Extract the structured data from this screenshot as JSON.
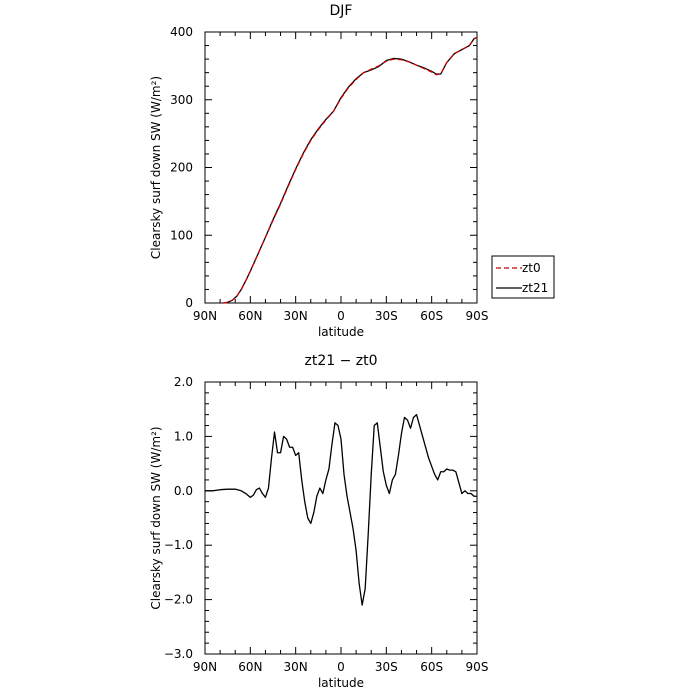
{
  "chart_data": [
    {
      "type": "line",
      "title": "DJF",
      "xlabel": "latitude",
      "ylabel": "Clearsky surf down SW (W/m²)",
      "xlim": [
        90,
        -90
      ],
      "ylim": [
        0,
        400
      ],
      "xticks": [
        90,
        60,
        30,
        0,
        -30,
        -60,
        -90
      ],
      "xtick_labels": [
        "90N",
        "60N",
        "30N",
        "0",
        "30S",
        "60S",
        "90S"
      ],
      "yticks": [
        0,
        100,
        200,
        300,
        400
      ],
      "ytick_labels": [
        "0",
        "100",
        "200",
        "300",
        "400"
      ],
      "legend_position": "outside-right",
      "series": [
        {
          "name": "zt0",
          "color": "#cc0000",
          "dash": "dashed",
          "x": [
            78,
            75,
            72,
            69,
            66,
            63,
            60,
            55,
            50,
            45,
            40,
            35,
            30,
            25,
            20,
            15,
            10,
            5,
            0,
            -5,
            -10,
            -15,
            -20,
            -25,
            -30,
            -35,
            -40,
            -45,
            -50,
            -55,
            -60,
            -63,
            -66,
            -70,
            -75,
            -80,
            -85,
            -88,
            -90
          ],
          "y": [
            0,
            1,
            4,
            10,
            20,
            33,
            47,
            72,
            97,
            122,
            146,
            172,
            197,
            220,
            240,
            256,
            270,
            283,
            302,
            318,
            330,
            340,
            345,
            350,
            357,
            360,
            359,
            356,
            351,
            346,
            341,
            337,
            338,
            355,
            368,
            374,
            380,
            390,
            392
          ]
        },
        {
          "name": "zt21",
          "color": "#000000",
          "dash": "solid",
          "x": [
            78,
            75,
            72,
            69,
            66,
            63,
            60,
            55,
            50,
            45,
            40,
            35,
            30,
            25,
            20,
            15,
            10,
            5,
            0,
            -5,
            -10,
            -15,
            -20,
            -25,
            -30,
            -35,
            -40,
            -45,
            -50,
            -55,
            -60,
            -63,
            -66,
            -70,
            -75,
            -80,
            -85,
            -88,
            -90
          ],
          "y": [
            0,
            1,
            4,
            10,
            20,
            33,
            47,
            72,
            97,
            123,
            147,
            173,
            198,
            221,
            241,
            257,
            271,
            283,
            303,
            319,
            331,
            340,
            344,
            349,
            358,
            361,
            360,
            356,
            351,
            347,
            342,
            338,
            338,
            355,
            368,
            374,
            380,
            390,
            392
          ]
        }
      ]
    },
    {
      "type": "line",
      "title": "zt21 − zt0",
      "xlabel": "latitude",
      "ylabel": "Clearsky surf down SW (W/m²)",
      "xlim": [
        90,
        -90
      ],
      "ylim": [
        -3,
        2
      ],
      "xticks": [
        90,
        60,
        30,
        0,
        -30,
        -60,
        -90
      ],
      "xtick_labels": [
        "90N",
        "60N",
        "30N",
        "0",
        "30S",
        "60S",
        "90S"
      ],
      "yticks": [
        -3,
        -2,
        -1,
        0,
        1,
        2
      ],
      "ytick_labels": [
        "−3.0",
        "−2.0",
        "−1.0",
        "0.0",
        "1.0",
        "2.0"
      ],
      "series": [
        {
          "color": "#000000",
          "x": [
            90,
            85,
            80,
            75,
            70,
            66,
            63,
            60,
            58,
            56,
            54,
            52,
            50,
            48,
            46,
            44,
            42,
            40,
            38,
            36,
            34,
            32,
            30,
            28,
            26,
            24,
            22,
            20,
            18,
            16,
            14,
            12,
            10,
            8,
            6,
            4,
            2,
            0,
            -2,
            -4,
            -6,
            -8,
            -10,
            -12,
            -14,
            -16,
            -18,
            -20,
            -22,
            -24,
            -26,
            -28,
            -30,
            -32,
            -34,
            -36,
            -38,
            -40,
            -42,
            -44,
            -46,
            -48,
            -50,
            -52,
            -54,
            -56,
            -58,
            -60,
            -62,
            -64,
            -66,
            -68,
            -70,
            -72,
            -74,
            -76,
            -78,
            -80,
            -82,
            -84,
            -86,
            -88,
            -90
          ],
          "y": [
            0.0,
            0.0,
            0.02,
            0.03,
            0.03,
            0.0,
            -0.05,
            -0.12,
            -0.08,
            0.02,
            0.05,
            -0.05,
            -0.12,
            0.05,
            0.6,
            1.08,
            0.7,
            0.7,
            1.0,
            0.95,
            0.8,
            0.8,
            0.65,
            0.7,
            0.2,
            -0.2,
            -0.5,
            -0.6,
            -0.4,
            -0.1,
            0.05,
            -0.05,
            0.2,
            0.4,
            0.85,
            1.25,
            1.2,
            0.95,
            0.3,
            -0.1,
            -0.4,
            -0.7,
            -1.1,
            -1.7,
            -2.1,
            -1.8,
            -0.8,
            0.3,
            1.2,
            1.25,
            0.8,
            0.35,
            0.1,
            -0.05,
            0.2,
            0.3,
            0.65,
            1.05,
            1.35,
            1.3,
            1.15,
            1.35,
            1.4,
            1.2,
            1.0,
            0.8,
            0.6,
            0.45,
            0.3,
            0.2,
            0.35,
            0.35,
            0.4,
            0.38,
            0.38,
            0.35,
            0.15,
            -0.05,
            0.0,
            -0.05,
            -0.05,
            -0.1,
            -0.1
          ]
        }
      ]
    }
  ]
}
